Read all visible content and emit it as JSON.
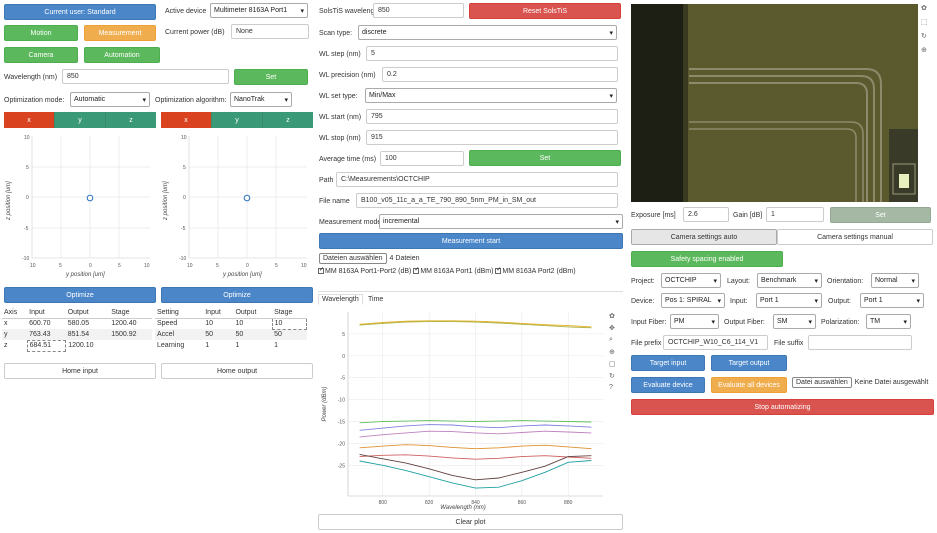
{
  "colors": {
    "blue": "#4a86c8",
    "green": "#5cb85c",
    "orange": "#f0ad4e",
    "red": "#d9534f",
    "teal": "#3a9a78"
  },
  "left": {
    "current_user": "Current user: Standard",
    "active_device_label": "Active device",
    "active_device_value": "Multimeter 8163A Port1",
    "motion": "Motion",
    "measurement": "Measurement",
    "current_power_label": "Current power (dB)",
    "current_power_value": "None",
    "camera": "Camera",
    "automation": "Automation",
    "wavelength_label": "Wavelength (nm)",
    "wavelength_value": "850",
    "set": "Set",
    "opt_mode_label": "Optimization mode:",
    "opt_mode_value": "Automatic",
    "opt_alg_label": "Optimization algorithm:",
    "opt_alg_value": "NanoTrak",
    "seg_left": [
      "x",
      "y",
      "z"
    ],
    "seg_right": [
      "x",
      "y",
      "z"
    ],
    "plot_left": {
      "ylabel": "z position [um]",
      "xlabel": "y position [um]",
      "yticks": [
        "10",
        "5",
        "0",
        "-5",
        "-10"
      ],
      "xticks": [
        "10",
        "5",
        "0",
        "5",
        "10"
      ]
    },
    "plot_right": {
      "ylabel": "z position [um]",
      "xlabel": "y position [um]",
      "yticks": [
        "10",
        "5",
        "0",
        "-5",
        "-10"
      ],
      "xticks": [
        "10",
        "5",
        "0",
        "5",
        "10"
      ]
    },
    "optimize_left": "Optimize",
    "optimize_right": "Optimize",
    "axis_table": {
      "headers": [
        "Axis",
        "Input",
        "Output",
        "Stage"
      ],
      "rows": [
        [
          "x",
          "600.70",
          "580.05",
          "1200.40"
        ],
        [
          "y",
          "763.43",
          "851.54",
          "1500.92"
        ],
        [
          "z",
          "684.51",
          "1200.10",
          ""
        ]
      ]
    },
    "setting_table": {
      "headers": [
        "Setting",
        "Input",
        "Output",
        "Stage"
      ],
      "rows": [
        [
          "Speed",
          "10",
          "10",
          "10"
        ],
        [
          "Accel",
          "50",
          "50",
          "50"
        ],
        [
          "Learning",
          "1",
          "1",
          "1"
        ]
      ]
    },
    "home_input": "Home input",
    "home_output": "Home output"
  },
  "mid": {
    "solstis_label": "SolsTiS wavelength (nm)",
    "solstis_value": "850",
    "reset": "Reset SolsTiS",
    "scan_type_label": "Scan type:",
    "scan_type_value": "discrete",
    "wl_step_label": "WL step (nm)",
    "wl_step_value": "5",
    "wl_precision_label": "WL precision (nm)",
    "wl_precision_value": "0.2",
    "wl_set_type_label": "WL set type:",
    "wl_set_type_value": "Min/Max",
    "wl_start_label": "WL start (nm)",
    "wl_start_value": "795",
    "wl_stop_label": "WL stop (nm)",
    "wl_stop_value": "915",
    "avg_time_label": "Average time (ms)",
    "avg_time_value": "100",
    "set": "Set",
    "path_label": "Path",
    "path_value": "C:\\Measurements\\OCTCHIP",
    "file_name_label": "File name",
    "file_name_value": "B100_v05_11c_a_a_TE_790_890_5nm_PM_in_SM_out",
    "meas_mode_label": "Measurement mode:",
    "meas_mode_value": "incremental",
    "measurement_start": "Measurement start",
    "file_button": "Dateien auswählen",
    "file_count": "4 Dateien",
    "checkboxes": [
      "MM 8163A Port1-Port2 (dB)",
      "MM 8163A Port1 (dBm)",
      "MM 8163A Port2 (dBm)"
    ],
    "tabs": [
      "Wavelength",
      "Time"
    ],
    "clear_plot": "Clear plot"
  },
  "chart_data": {
    "type": "line",
    "xlabel": "Wavelength (nm)",
    "ylabel": "Power (dBm)",
    "xlim": [
      785,
      895
    ],
    "ylim": [
      -32,
      10
    ],
    "xticks": [
      "800",
      "820",
      "840",
      "860",
      "880"
    ],
    "yticks": [
      "5",
      "0",
      "-5",
      "-10",
      "-15",
      "-20",
      "-25"
    ],
    "x": [
      790,
      800,
      810,
      820,
      830,
      840,
      850,
      860,
      870,
      880,
      890
    ],
    "series": [
      {
        "color": "#e0b020",
        "values": [
          7.2,
          7.6,
          7.9,
          8.0,
          8.0,
          7.9,
          7.7,
          7.4,
          7.1,
          6.9,
          6.6
        ]
      },
      {
        "color": "#b0b040",
        "values": [
          7.0,
          7.4,
          7.7,
          7.8,
          7.8,
          7.7,
          7.5,
          7.2,
          6.9,
          6.6,
          6.4
        ]
      },
      {
        "color": "#60c060",
        "values": [
          -15.3,
          -15.0,
          -14.9,
          -14.8,
          -14.9,
          -15.0,
          -14.9,
          -14.8,
          -14.9,
          -15.0,
          -15.1
        ]
      },
      {
        "color": "#8080e0",
        "values": [
          -17.0,
          -16.5,
          -16.0,
          -15.7,
          -15.8,
          -16.2,
          -16.4,
          -16.0,
          -15.8,
          -16.0,
          -16.3
        ]
      },
      {
        "color": "#c080c0",
        "values": [
          -18.5,
          -18.0,
          -17.6,
          -17.2,
          -17.3,
          -17.6,
          -17.8,
          -17.5,
          -17.2,
          -17.4,
          -17.6
        ]
      },
      {
        "color": "#e09030",
        "values": [
          -21.0,
          -20.6,
          -20.3,
          -20.5,
          -20.9,
          -21.2,
          -21.0,
          -20.6,
          -20.4,
          -20.8,
          -21.2
        ]
      },
      {
        "color": "#d06060",
        "values": [
          -23.0,
          -22.7,
          -22.6,
          -22.9,
          -23.3,
          -23.6,
          -23.4,
          -23.0,
          -22.8,
          -23.1,
          -23.4
        ]
      },
      {
        "color": "#604040",
        "values": [
          -22.5,
          -23.5,
          -24.5,
          -25.8,
          -27.3,
          -28.3,
          -27.9,
          -26.6,
          -25.2,
          -23.0,
          -22.8
        ]
      },
      {
        "color": "#20a0a0",
        "values": [
          -24.0,
          -25.0,
          -26.2,
          -27.6,
          -29.0,
          -30.2,
          -30.0,
          -28.5,
          -26.6,
          -24.3,
          -23.9
        ]
      }
    ]
  },
  "right": {
    "exposure_label": "Exposure [ms]",
    "exposure_value": "2.6",
    "gain_label": "Gain [dB]",
    "gain_value": "1",
    "set": "Set",
    "tab_auto": "Camera settings auto",
    "tab_manual": "Camera settings manual",
    "safety": "Safety spacing enabled",
    "project_label": "Project:",
    "project_value": "OCTCHIP",
    "layout_label": "Layout:",
    "layout_value": "Benchmark",
    "orientation_label": "Orientation:",
    "orientation_value": "Normal",
    "device_label": "Device:",
    "device_value": "Pos 1: SPIRAL",
    "input_label": "Input:",
    "input_value": "Port 1",
    "output_label": "Output:",
    "output_value": "Port 1",
    "input_fiber_label": "Input Fiber:",
    "input_fiber_value": "PM",
    "output_fiber_label": "Output Fiber:",
    "output_fiber_value": "SM",
    "polarization_label": "Polarization:",
    "polarization_value": "TM",
    "file_prefix_label": "File prefix",
    "file_prefix_value": "OCTCHIP_W10_C6_114_V1",
    "file_suffix_label": "File suffix",
    "file_suffix_value": "",
    "target_input": "Target input",
    "target_output": "Target output",
    "evaluate_device": "Evaluate device",
    "evaluate_all": "Evaluate all devices",
    "file_button": "Datei auswählen",
    "file_none": "Keine Datei ausgewählt",
    "stop": "Stop automatizing"
  }
}
